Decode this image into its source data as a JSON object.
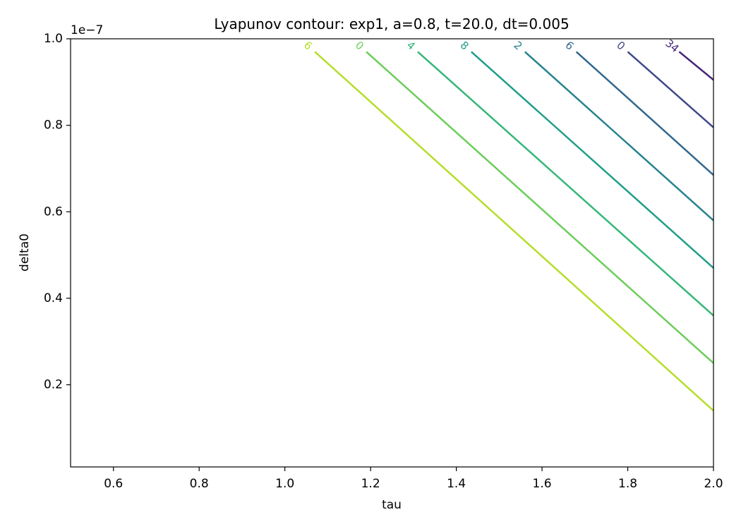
{
  "chart_data": {
    "type": "contour",
    "title": "Lyapunov contour: exp1, a=0.8, t=20.0, dt=0.005",
    "xlabel": "tau",
    "ylabel": "delta0",
    "y_offset_label": "1e−7",
    "xlim": [
      0.5,
      2.0
    ],
    "ylim": [
      0.01,
      1.0
    ],
    "x_ticks": [
      0.6,
      0.8,
      1.0,
      1.2,
      1.4,
      1.6,
      1.8,
      2.0
    ],
    "x_tick_labels": [
      "0.6",
      "0.8",
      "1.0",
      "1.2",
      "1.4",
      "1.6",
      "1.8",
      "2.0"
    ],
    "y_ticks": [
      0.2,
      0.4,
      0.6,
      0.8,
      1.0
    ],
    "y_tick_labels": [
      "0.2",
      "0.4",
      "0.6",
      "0.8",
      "1.0"
    ],
    "grid": false,
    "colormap": "viridis",
    "contours": [
      {
        "label": "6",
        "color": "#b5de2b",
        "points": [
          [
            1.07,
            0.97
          ],
          [
            2.0,
            0.14
          ]
        ]
      },
      {
        "label": "0",
        "color": "#6ccd5a",
        "points": [
          [
            1.19,
            0.97
          ],
          [
            2.0,
            0.25
          ]
        ]
      },
      {
        "label": "4",
        "color": "#35b779",
        "points": [
          [
            1.31,
            0.97
          ],
          [
            2.0,
            0.36
          ]
        ]
      },
      {
        "label": "8",
        "color": "#1f9e89",
        "points": [
          [
            1.435,
            0.97
          ],
          [
            2.0,
            0.47
          ]
        ]
      },
      {
        "label": "2",
        "color": "#26828e",
        "points": [
          [
            1.56,
            0.97
          ],
          [
            2.0,
            0.58
          ]
        ]
      },
      {
        "label": "6",
        "color": "#31688e",
        "points": [
          [
            1.68,
            0.97
          ],
          [
            2.0,
            0.685
          ]
        ]
      },
      {
        "label": "0",
        "color": "#3e4989",
        "points": [
          [
            1.8,
            0.97
          ],
          [
            2.0,
            0.795
          ]
        ]
      },
      {
        "label": "34",
        "color": "#482878",
        "points": [
          [
            1.92,
            0.97
          ],
          [
            2.0,
            0.905
          ]
        ]
      }
    ]
  }
}
